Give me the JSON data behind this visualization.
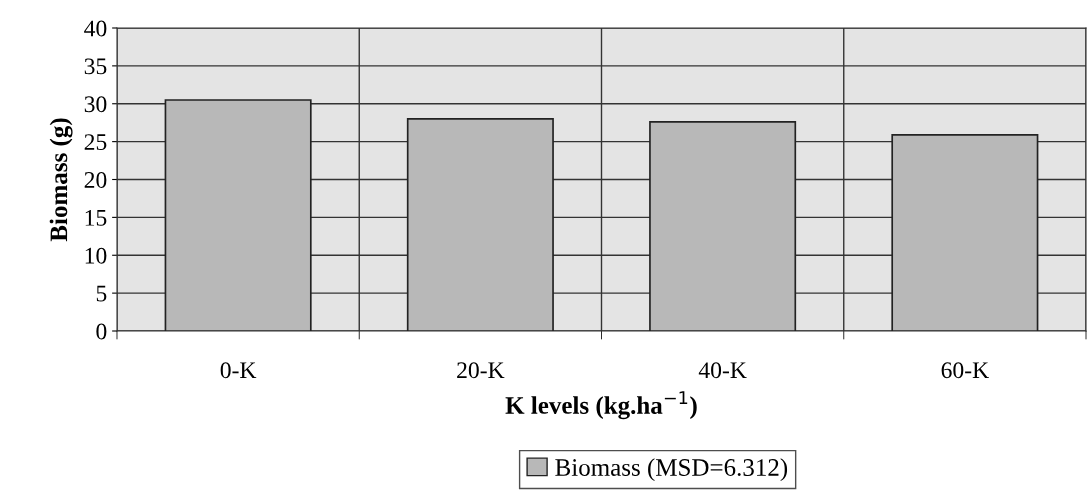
{
  "chart_data": {
    "type": "bar",
    "xlabel": "K levels (kg.ha$^{−1}$)",
    "ylabel": "Biomass (g)",
    "categories": [
      "0-K",
      "20-K",
      "40-K",
      "60-K"
    ],
    "series": [
      {
        "name": "Biomass (MSD=6.312)",
        "color": "#b8b8b8",
        "values": [
          30.5,
          28.0,
          27.6,
          25.9
        ]
      }
    ],
    "ylim": [
      0,
      40
    ],
    "yticks": [
      0,
      5,
      10,
      15,
      20,
      25,
      30,
      35,
      40
    ],
    "grid": true,
    "legend": "bottom"
  }
}
